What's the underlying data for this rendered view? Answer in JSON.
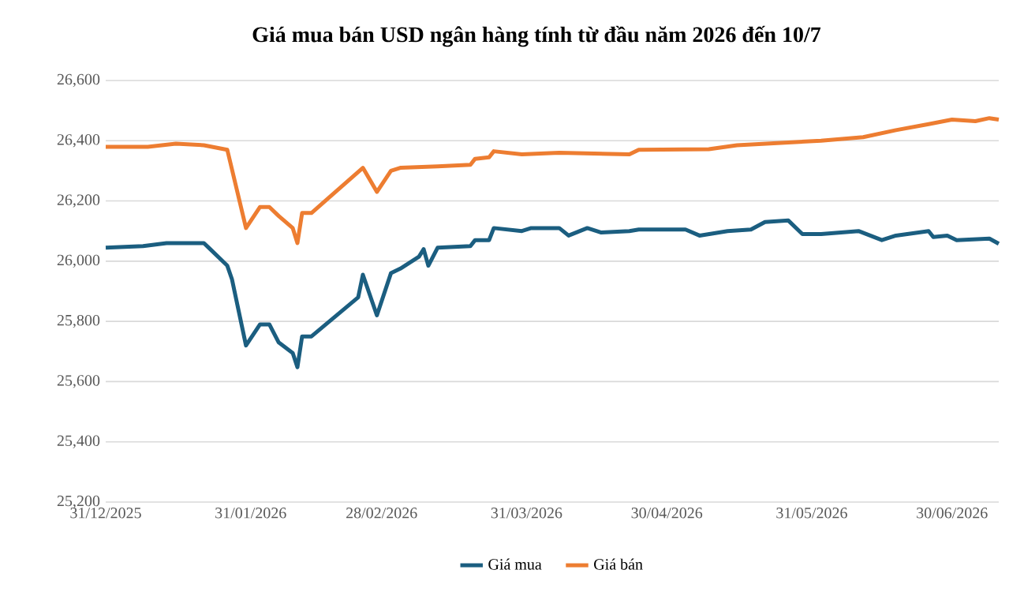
{
  "chart_data": {
    "type": "line",
    "title": "Giá mua bán USD ngân hàng tính từ đầu năm 2026 đến 10/7",
    "series": [
      {
        "name": "Giá mua",
        "color": "#1b5e80",
        "x": [
          "2025-12-31",
          "2026-01-08",
          "2026-01-13",
          "2026-01-21",
          "2026-01-22",
          "2026-01-26",
          "2026-01-27",
          "2026-01-30",
          "2026-02-02",
          "2026-02-04",
          "2026-02-06",
          "2026-02-09",
          "2026-02-10",
          "2026-02-11",
          "2026-02-13",
          "2026-02-23",
          "2026-02-24",
          "2026-02-27",
          "2026-03-02",
          "2026-03-04",
          "2026-03-08",
          "2026-03-09",
          "2026-03-10",
          "2026-03-12",
          "2026-03-19",
          "2026-03-20",
          "2026-03-23",
          "2026-03-24",
          "2026-03-30",
          "2026-04-01",
          "2026-04-07",
          "2026-04-09",
          "2026-04-13",
          "2026-04-16",
          "2026-04-22",
          "2026-04-24",
          "2026-05-04",
          "2026-05-07",
          "2026-05-13",
          "2026-05-18",
          "2026-05-21",
          "2026-05-26",
          "2026-05-29",
          "2026-06-02",
          "2026-06-10",
          "2026-06-15",
          "2026-06-18",
          "2026-06-25",
          "2026-06-26",
          "2026-06-29",
          "2026-07-01",
          "2026-07-08",
          "2026-07-10"
        ],
        "values": [
          26045,
          26050,
          26060,
          26060,
          26045,
          25985,
          25940,
          25720,
          25790,
          25790,
          25730,
          25695,
          25648,
          25750,
          25750,
          25880,
          25955,
          25820,
          25960,
          25975,
          26015,
          26040,
          25985,
          26045,
          26050,
          26070,
          26070,
          26110,
          26100,
          26110,
          26110,
          26085,
          26110,
          26095,
          26100,
          26105,
          26105,
          26085,
          26100,
          26105,
          26130,
          26135,
          26090,
          26090,
          26100,
          26070,
          26085,
          26100,
          26080,
          26085,
          26070,
          26075,
          26058
        ]
      },
      {
        "name": "Giá bán",
        "color": "#ed7d31",
        "x": [
          "2025-12-31",
          "2026-01-09",
          "2026-01-15",
          "2026-01-21",
          "2026-01-26",
          "2026-01-30",
          "2026-02-02",
          "2026-02-04",
          "2026-02-06",
          "2026-02-09",
          "2026-02-10",
          "2026-02-11",
          "2026-02-13",
          "2026-02-24",
          "2026-02-27",
          "2026-03-02",
          "2026-03-04",
          "2026-03-12",
          "2026-03-19",
          "2026-03-20",
          "2026-03-23",
          "2026-03-24",
          "2026-03-30",
          "2026-04-07",
          "2026-04-22",
          "2026-04-24",
          "2026-05-09",
          "2026-05-15",
          "2026-06-02",
          "2026-06-11",
          "2026-06-18",
          "2026-06-25",
          "2026-06-30",
          "2026-07-05",
          "2026-07-08",
          "2026-07-10"
        ],
        "values": [
          26380,
          26380,
          26390,
          26385,
          26370,
          26110,
          26180,
          26180,
          26150,
          26110,
          26060,
          26160,
          26160,
          26310,
          26230,
          26300,
          26310,
          26315,
          26320,
          26340,
          26345,
          26365,
          26355,
          26360,
          26355,
          26370,
          26372,
          26385,
          26400,
          26412,
          26435,
          26455,
          26470,
          26465,
          26475,
          26470
        ]
      }
    ],
    "xlim": [
      "2025-12-31",
      "2026-07-10"
    ],
    "xticks": [
      {
        "value": "2025-12-31",
        "label": "31/12/2025"
      },
      {
        "value": "2026-01-31",
        "label": "31/01/2026"
      },
      {
        "value": "2026-02-28",
        "label": "28/02/2026"
      },
      {
        "value": "2026-03-31",
        "label": "31/03/2026"
      },
      {
        "value": "2026-04-30",
        "label": "30/04/2026"
      },
      {
        "value": "2026-05-31",
        "label": "31/05/2026"
      },
      {
        "value": "2026-06-30",
        "label": "30/06/2026"
      }
    ],
    "ylim": [
      25200,
      26600
    ],
    "yticks": [
      {
        "value": 25200,
        "label": "25,200"
      },
      {
        "value": 25400,
        "label": "25,400"
      },
      {
        "value": 25600,
        "label": "25,600"
      },
      {
        "value": 25800,
        "label": "25,800"
      },
      {
        "value": 26000,
        "label": "26,000"
      },
      {
        "value": 26200,
        "label": "26,200"
      },
      {
        "value": 26400,
        "label": "26,400"
      },
      {
        "value": 26600,
        "label": "26,600"
      }
    ],
    "grid": "y",
    "legend": "bottom",
    "marker": "none",
    "line_style": "solid"
  }
}
